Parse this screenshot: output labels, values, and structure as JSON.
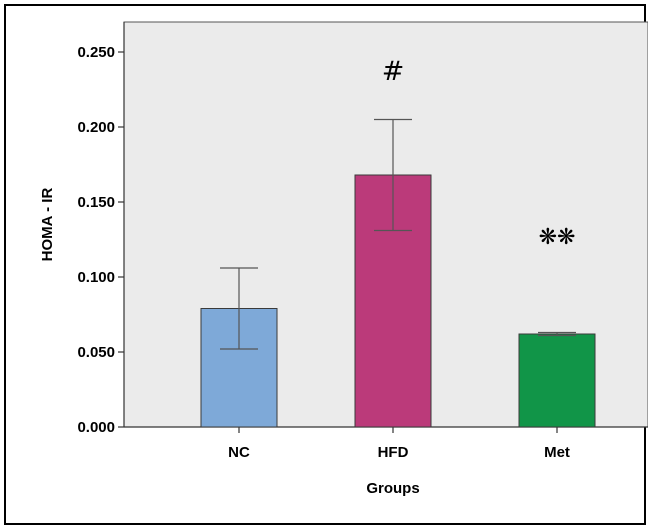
{
  "chart_data": {
    "type": "bar",
    "categories": [
      "NC",
      "HFD",
      "Met"
    ],
    "values": [
      0.079,
      0.168,
      0.062
    ],
    "error_low": [
      0.052,
      0.131,
      0.061
    ],
    "error_high": [
      0.106,
      0.205,
      0.063
    ],
    "bar_colors": [
      "#7ea9d8",
      "#bb3a7a",
      "#119548"
    ],
    "annotations": [
      "",
      "#",
      "❋❋"
    ],
    "annotation_values": [
      null,
      0.238,
      0.128
    ],
    "xlabel": "Groups",
    "ylabel": "HOMA - IR",
    "ylim": [
      0,
      0.27
    ],
    "yticks": [
      0,
      0.05,
      0.1,
      0.15,
      0.2,
      0.25
    ],
    "ytick_labels": [
      "0.000",
      "0.050",
      "0.100",
      "0.150",
      "0.200",
      "0.250"
    ],
    "plot_background": "#ebebeb",
    "grid": false,
    "legend": "none"
  }
}
